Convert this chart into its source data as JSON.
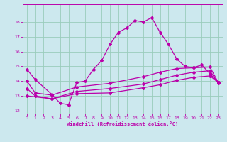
{
  "xlabel": "Windchill (Refroidissement éolien,°C)",
  "ylabel": "",
  "bg_color": "#cce8ee",
  "grid_color": "#99ccbb",
  "line_color": "#bb00aa",
  "xlim": [
    -0.5,
    23.5
  ],
  "ylim": [
    11.8,
    19.2
  ],
  "yticks": [
    12,
    13,
    14,
    15,
    16,
    17,
    18
  ],
  "xticks": [
    0,
    1,
    2,
    3,
    4,
    5,
    6,
    7,
    8,
    9,
    10,
    11,
    12,
    13,
    14,
    15,
    16,
    17,
    18,
    19,
    20,
    21,
    22,
    23
  ],
  "lines": [
    {
      "x": [
        0,
        1,
        3,
        4,
        5,
        6,
        7,
        8,
        9,
        10,
        11,
        12,
        13,
        14,
        15,
        16,
        17,
        18,
        19,
        20,
        21,
        22,
        23
      ],
      "y": [
        14.8,
        14.1,
        13.1,
        12.5,
        12.4,
        13.9,
        14.0,
        14.8,
        15.4,
        16.5,
        17.3,
        17.6,
        18.1,
        18.0,
        18.3,
        17.3,
        16.5,
        15.5,
        15.0,
        14.9,
        15.1,
        14.5,
        13.9
      ]
    },
    {
      "x": [
        0,
        1,
        3,
        6,
        10,
        14,
        16,
        18,
        20,
        22,
        23
      ],
      "y": [
        14.0,
        13.2,
        13.05,
        13.6,
        13.85,
        14.3,
        14.6,
        14.85,
        14.9,
        14.95,
        13.9
      ]
    },
    {
      "x": [
        0,
        1,
        3,
        6,
        10,
        14,
        16,
        18,
        20,
        22,
        23
      ],
      "y": [
        13.5,
        13.0,
        12.8,
        13.3,
        13.5,
        13.8,
        14.1,
        14.4,
        14.6,
        14.7,
        13.85
      ]
    },
    {
      "x": [
        0,
        3,
        6,
        10,
        14,
        16,
        18,
        20,
        22,
        23
      ],
      "y": [
        13.0,
        12.8,
        13.15,
        13.2,
        13.55,
        13.75,
        14.05,
        14.25,
        14.35,
        13.9
      ]
    }
  ]
}
